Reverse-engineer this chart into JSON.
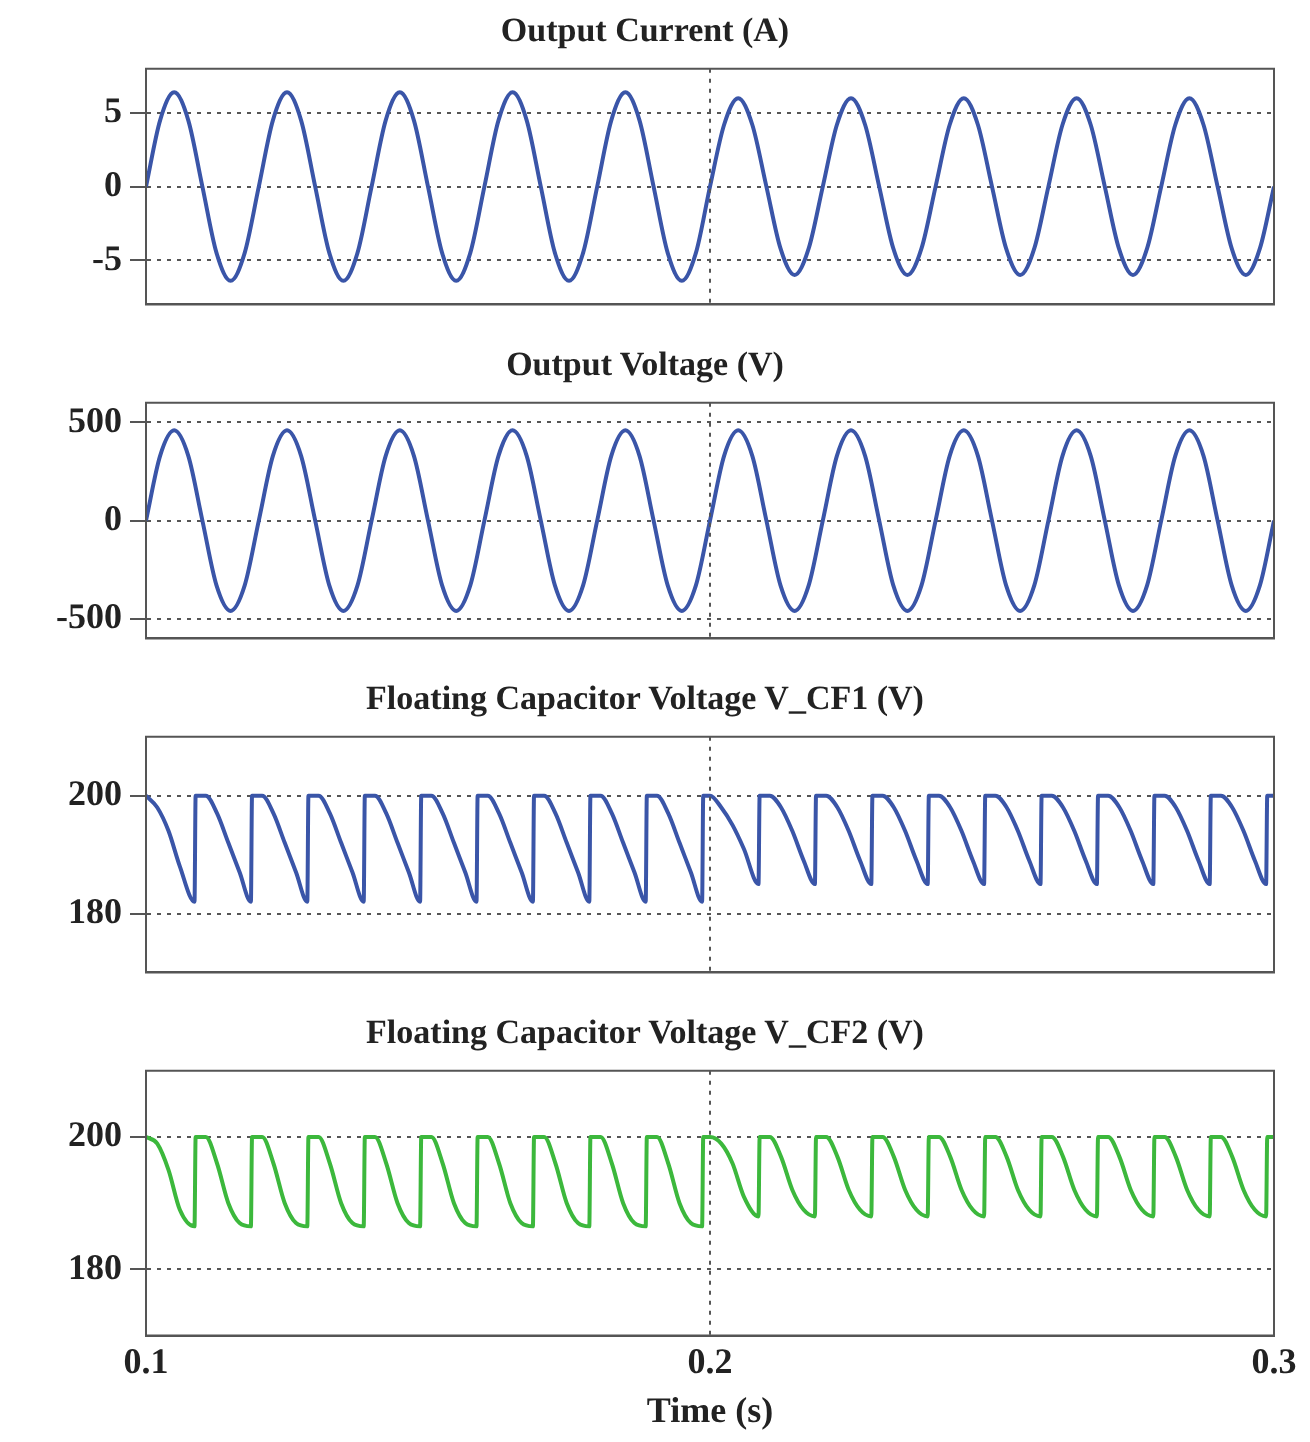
{
  "chart_data": [
    {
      "type": "line",
      "title": "Output Current (A)",
      "xlim": [
        0.1,
        0.3
      ],
      "xticks": [
        0.1,
        0.2,
        0.3
      ],
      "ylim": [
        -8,
        8
      ],
      "yticks": [
        -5,
        0,
        5
      ],
      "grid": "y",
      "tick_labels": "y",
      "ref_lines": [
        {
          "axis": "x",
          "value": 0.2,
          "line_style": "dotted"
        }
      ],
      "x": [
        0.1,
        0.1025,
        0.105,
        0.1075,
        0.11,
        0.1125,
        0.115,
        0.1175,
        0.12,
        0.1225,
        0.125,
        0.1275,
        0.13,
        0.1325,
        0.135,
        0.1375,
        0.14,
        0.1425,
        0.145,
        0.1475,
        0.15,
        0.1525,
        0.155,
        0.1575,
        0.16,
        0.1625,
        0.165,
        0.1675,
        0.17,
        0.1725,
        0.175,
        0.1775,
        0.18,
        0.1825,
        0.185,
        0.1875,
        0.19,
        0.1925,
        0.195,
        0.1975,
        0.2,
        0.2025,
        0.205,
        0.2075,
        0.21,
        0.2125,
        0.215,
        0.2175,
        0.22,
        0.2225,
        0.225,
        0.2275,
        0.23,
        0.2325,
        0.235,
        0.2375,
        0.24,
        0.2425,
        0.245,
        0.2475,
        0.25,
        0.2525,
        0.255,
        0.2575,
        0.26,
        0.2625,
        0.265,
        0.2675,
        0.27,
        0.2725,
        0.275,
        0.2775,
        0.28,
        0.2825,
        0.285,
        0.2875,
        0.29,
        0.2925,
        0.295,
        0.2975,
        0.3
      ],
      "series": [
        {
          "color": "#3a55a8",
          "values": [
            0,
            4.5,
            6.4,
            4.5,
            0,
            -4.5,
            -6.4,
            -4.5,
            0,
            4.5,
            6.4,
            4.5,
            0,
            -4.5,
            -6.4,
            -4.5,
            0,
            4.5,
            6.4,
            4.5,
            0,
            -4.5,
            -6.4,
            -4.5,
            0,
            4.5,
            6.4,
            4.5,
            0,
            -4.5,
            -6.4,
            -4.5,
            0,
            4.5,
            6.4,
            4.5,
            0,
            -4.5,
            -6.4,
            -4.5,
            0,
            4.2,
            6,
            4.2,
            0,
            -4.2,
            -6,
            -4.2,
            0,
            4.2,
            6,
            4.2,
            0,
            -4.2,
            -6,
            -4.2,
            0,
            4.2,
            6,
            4.2,
            0,
            -4.2,
            -6,
            -4.2,
            0,
            4.2,
            6,
            4.2,
            0,
            -4.2,
            -6,
            -4.2,
            0,
            4.2,
            6,
            4.2,
            0,
            -4.2,
            -6,
            -4.2,
            0
          ]
        }
      ]
    },
    {
      "type": "line",
      "title": "Output Voltage (V)",
      "xlim": [
        0.1,
        0.3
      ],
      "xticks": [
        0.1,
        0.2,
        0.3
      ],
      "ylim": [
        -600,
        600
      ],
      "yticks": [
        -500,
        0,
        500
      ],
      "grid": "y",
      "tick_labels": "y",
      "ref_lines": [
        {
          "axis": "x",
          "value": 0.2,
          "line_style": "dotted"
        }
      ],
      "x": [
        0.1,
        0.1025,
        0.105,
        0.1075,
        0.11,
        0.1125,
        0.115,
        0.1175,
        0.12,
        0.1225,
        0.125,
        0.1275,
        0.13,
        0.1325,
        0.135,
        0.1375,
        0.14,
        0.1425,
        0.145,
        0.1475,
        0.15,
        0.1525,
        0.155,
        0.1575,
        0.16,
        0.1625,
        0.165,
        0.1675,
        0.17,
        0.1725,
        0.175,
        0.1775,
        0.18,
        0.1825,
        0.185,
        0.1875,
        0.19,
        0.1925,
        0.195,
        0.1975,
        0.2,
        0.2025,
        0.205,
        0.2075,
        0.21,
        0.2125,
        0.215,
        0.2175,
        0.22,
        0.2225,
        0.225,
        0.2275,
        0.23,
        0.2325,
        0.235,
        0.2375,
        0.24,
        0.2425,
        0.245,
        0.2475,
        0.25,
        0.2525,
        0.255,
        0.2575,
        0.26,
        0.2625,
        0.265,
        0.2675,
        0.27,
        0.2725,
        0.275,
        0.2775,
        0.28,
        0.2825,
        0.285,
        0.2875,
        0.29,
        0.2925,
        0.295,
        0.2975,
        0.3
      ],
      "series": [
        {
          "color": "#3a55a8",
          "values": [
            0,
            330,
            460,
            330,
            0,
            -330,
            -460,
            -330,
            0,
            330,
            460,
            330,
            0,
            -330,
            -460,
            -330,
            0,
            330,
            460,
            330,
            0,
            -330,
            -460,
            -330,
            0,
            330,
            460,
            330,
            0,
            -330,
            -460,
            -330,
            0,
            330,
            460,
            330,
            0,
            -330,
            -460,
            -330,
            0,
            330,
            460,
            330,
            0,
            -330,
            -460,
            -330,
            0,
            330,
            460,
            330,
            0,
            -330,
            -460,
            -330,
            0,
            330,
            460,
            330,
            0,
            -330,
            -460,
            -330,
            0,
            330,
            460,
            330,
            0,
            -330,
            -460,
            -330,
            0,
            330,
            460,
            330,
            0,
            -330,
            -460,
            -330,
            0
          ]
        }
      ]
    },
    {
      "type": "line",
      "title": "Floating Capacitor Voltage V_CF1 (V)",
      "xlim": [
        0.1,
        0.3
      ],
      "xticks": [
        0.1,
        0.2,
        0.3
      ],
      "ylim": [
        170,
        210
      ],
      "yticks": [
        180,
        200
      ],
      "grid": "y",
      "tick_labels": "y",
      "ref_lines": [
        {
          "axis": "x",
          "value": 0.2,
          "line_style": "dotted"
        }
      ],
      "x": [
        0.1,
        0.102,
        0.104,
        0.106,
        0.1086,
        0.1088,
        0.1106,
        0.1126,
        0.1146,
        0.1166,
        0.1186,
        0.1188,
        0.1206,
        0.1226,
        0.1246,
        0.1266,
        0.1286,
        0.1288,
        0.1306,
        0.1326,
        0.1346,
        0.1366,
        0.1386,
        0.1388,
        0.1406,
        0.1426,
        0.1446,
        0.1466,
        0.1486,
        0.1488,
        0.1506,
        0.1526,
        0.1546,
        0.1566,
        0.1586,
        0.1588,
        0.1606,
        0.1626,
        0.1646,
        0.1666,
        0.1686,
        0.1688,
        0.1706,
        0.1726,
        0.1746,
        0.1766,
        0.1786,
        0.1788,
        0.1806,
        0.1826,
        0.1846,
        0.1866,
        0.1886,
        0.1888,
        0.1906,
        0.1926,
        0.1946,
        0.1966,
        0.1986,
        0.1988,
        0.2,
        0.202,
        0.204,
        0.206,
        0.2086,
        0.2088,
        0.2106,
        0.2126,
        0.2146,
        0.2166,
        0.2186,
        0.2188,
        0.2206,
        0.2226,
        0.2246,
        0.2266,
        0.2286,
        0.2288,
        0.2306,
        0.2326,
        0.2346,
        0.2366,
        0.2386,
        0.2388,
        0.2406,
        0.2426,
        0.2446,
        0.2466,
        0.2486,
        0.2488,
        0.2506,
        0.2526,
        0.2546,
        0.2566,
        0.2586,
        0.2588,
        0.2606,
        0.2626,
        0.2646,
        0.2666,
        0.2686,
        0.2688,
        0.2706,
        0.2726,
        0.2746,
        0.2766,
        0.2786,
        0.2788,
        0.2806,
        0.2826,
        0.2846,
        0.2866,
        0.2886,
        0.2888,
        0.2906,
        0.2926,
        0.2946,
        0.2966,
        0.2986,
        0.2988,
        0.3
      ],
      "series": [
        {
          "color": "#3a55a8",
          "values": [
            200,
            198,
            194,
            188,
            182,
            200,
            200,
            197,
            192,
            187,
            182,
            200,
            200,
            197,
            192,
            187,
            182,
            200,
            200,
            197,
            192,
            187,
            182,
            200,
            200,
            197,
            192,
            187,
            182,
            200,
            200,
            197,
            192,
            187,
            182,
            200,
            200,
            197,
            192,
            187,
            182,
            200,
            200,
            197,
            192,
            187,
            182,
            200,
            200,
            197,
            192,
            187,
            182,
            200,
            200,
            197,
            192,
            187,
            182,
            200,
            200,
            198,
            195,
            191,
            185,
            200,
            200,
            198,
            194,
            189,
            185,
            200,
            200,
            198,
            194,
            189,
            185,
            200,
            200,
            198,
            194,
            189,
            185,
            200,
            200,
            198,
            194,
            189,
            185,
            200,
            200,
            198,
            194,
            189,
            185,
            200,
            200,
            198,
            194,
            189,
            185,
            200,
            200,
            198,
            194,
            189,
            185,
            200,
            200,
            198,
            194,
            189,
            185,
            200,
            200,
            198,
            194,
            189,
            185,
            200,
            200
          ]
        }
      ]
    },
    {
      "type": "line",
      "title": "Floating Capacitor Voltage V_CF2 (V)",
      "xlabel": "Time (s)",
      "xlim": [
        0.1,
        0.3
      ],
      "xticks": [
        0.1,
        0.2,
        0.3
      ],
      "ylim": [
        170,
        210
      ],
      "yticks": [
        180,
        200
      ],
      "grid": "y",
      "ref_lines": [
        {
          "axis": "x",
          "value": 0.2,
          "line_style": "dotted"
        }
      ],
      "x": [
        0.1,
        0.102,
        0.104,
        0.106,
        0.1086,
        0.1088,
        0.1106,
        0.1126,
        0.1146,
        0.1166,
        0.1186,
        0.1188,
        0.1206,
        0.1226,
        0.1246,
        0.1266,
        0.1286,
        0.1288,
        0.1306,
        0.1326,
        0.1346,
        0.1366,
        0.1386,
        0.1388,
        0.1406,
        0.1426,
        0.1446,
        0.1466,
        0.1486,
        0.1488,
        0.1506,
        0.1526,
        0.1546,
        0.1566,
        0.1586,
        0.1588,
        0.1606,
        0.1626,
        0.1646,
        0.1666,
        0.1686,
        0.1688,
        0.1706,
        0.1726,
        0.1746,
        0.1766,
        0.1786,
        0.1788,
        0.1806,
        0.1826,
        0.1846,
        0.1866,
        0.1886,
        0.1888,
        0.1906,
        0.1926,
        0.1946,
        0.1966,
        0.1986,
        0.1988,
        0.2,
        0.202,
        0.204,
        0.206,
        0.2086,
        0.2088,
        0.2106,
        0.2126,
        0.2146,
        0.2166,
        0.2186,
        0.2188,
        0.2206,
        0.2226,
        0.2246,
        0.2266,
        0.2286,
        0.2288,
        0.2306,
        0.2326,
        0.2346,
        0.2366,
        0.2386,
        0.2388,
        0.2406,
        0.2426,
        0.2446,
        0.2466,
        0.2486,
        0.2488,
        0.2506,
        0.2526,
        0.2546,
        0.2566,
        0.2586,
        0.2588,
        0.2606,
        0.2626,
        0.2646,
        0.2666,
        0.2686,
        0.2688,
        0.2706,
        0.2726,
        0.2746,
        0.2766,
        0.2786,
        0.2788,
        0.2806,
        0.2826,
        0.2846,
        0.2866,
        0.2886,
        0.2888,
        0.2906,
        0.2926,
        0.2946,
        0.2966,
        0.2986,
        0.2988,
        0.3
      ],
      "series": [
        {
          "color": "#3cb83c",
          "values": [
            200,
            199,
            195,
            189,
            186.5,
            200,
            200,
            196,
            190,
            187,
            186.5,
            200,
            200,
            196,
            190,
            187,
            186.5,
            200,
            200,
            196,
            190,
            187,
            186.5,
            200,
            200,
            196,
            190,
            187,
            186.5,
            200,
            200,
            196,
            190,
            187,
            186.5,
            200,
            200,
            196,
            190,
            187,
            186.5,
            200,
            200,
            196,
            190,
            187,
            186.5,
            200,
            200,
            196,
            190,
            187,
            186.5,
            200,
            200,
            196,
            190,
            187,
            186.5,
            200,
            200,
            199,
            196,
            191,
            188,
            200,
            200,
            197,
            192,
            189,
            188,
            200,
            200,
            197,
            192,
            189,
            188,
            200,
            200,
            197,
            192,
            189,
            188,
            200,
            200,
            197,
            192,
            189,
            188,
            200,
            200,
            197,
            192,
            189,
            188,
            200,
            200,
            197,
            192,
            189,
            188,
            200,
            200,
            197,
            192,
            189,
            188,
            200,
            200,
            197,
            192,
            189,
            188,
            200,
            200,
            197,
            192,
            189,
            188,
            200,
            200
          ]
        }
      ]
    }
  ]
}
